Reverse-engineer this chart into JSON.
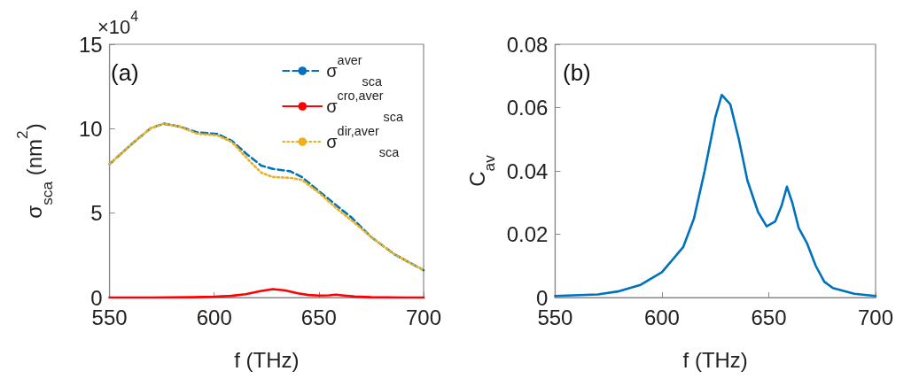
{
  "chart_data": [
    {
      "type": "line",
      "title": "(a)",
      "xlabel": "f (THz)",
      "ylabel": "σ$_{sca}$ (nm$^{2}$)",
      "annotations": [
        "×10$^{4}$"
      ],
      "xlim": [
        550,
        700
      ],
      "xticks": [
        550,
        600,
        650,
        700
      ],
      "ylim": [
        0,
        15
      ],
      "yticks": [
        0,
        5,
        10,
        15
      ],
      "grid": false,
      "legend": "top right",
      "marker": "none",
      "series": [
        {
          "name": "σ$^{aver}$$_{sca}$",
          "color": "#0072bd",
          "line_style": "dashed",
          "x": [
            550,
            561.4,
            569.7,
            575.9,
            583.6,
            591.9,
            601.6,
            608.5,
            615.5,
            622.4,
            628,
            636.3,
            641.8,
            650.1,
            658.5,
            665.4,
            675.1,
            686.2,
            700
          ],
          "values": [
            7.9,
            9.18,
            10.03,
            10.3,
            10.12,
            9.78,
            9.69,
            9.27,
            8.5,
            7.82,
            7.62,
            7.48,
            7.14,
            6.29,
            5.44,
            4.76,
            3.57,
            2.55,
            1.62
          ]
        },
        {
          "name": "σ$^{cro,aver}$$_{sca}$",
          "color": "#ff0000",
          "line_style": "solid",
          "x": [
            550,
            570,
            590,
            600,
            608,
            615,
            622,
            628,
            634,
            640,
            645,
            650,
            655,
            658,
            662,
            667,
            675,
            690,
            700
          ],
          "values": [
            0,
            0,
            0.02,
            0.05,
            0.1,
            0.2,
            0.38,
            0.5,
            0.42,
            0.25,
            0.15,
            0.12,
            0.13,
            0.17,
            0.12,
            0.06,
            0.02,
            0,
            0
          ]
        },
        {
          "name": "σ$^{dir,aver}$$_{sca}$",
          "color": "#edb120",
          "line_style": "dotted",
          "x": [
            550,
            561.4,
            569.7,
            575.9,
            583.6,
            591.9,
            601.6,
            608.5,
            616.9,
            622.4,
            628,
            636.3,
            641.8,
            650.1,
            658.5,
            665.4,
            675.1,
            686.2,
            700
          ],
          "values": [
            7.9,
            9.18,
            10.03,
            10.3,
            10.12,
            9.7,
            9.6,
            9.2,
            8.08,
            7.4,
            7.14,
            7.09,
            6.97,
            6.2,
            5.27,
            4.59,
            3.57,
            2.55,
            1.62
          ]
        }
      ]
    },
    {
      "type": "line",
      "title": "(b)",
      "xlabel": "f (THz)",
      "ylabel": "C$_{av}$",
      "xlim": [
        550,
        700
      ],
      "xticks": [
        550,
        600,
        650,
        700
      ],
      "ylim": [
        0,
        0.08
      ],
      "yticks": [
        0,
        0.02,
        0.04,
        0.06,
        0.08
      ],
      "grid": false,
      "legend": false,
      "marker": "none",
      "series": [
        {
          "color": "#0072bd",
          "line_style": "solid",
          "x": [
            550,
            570,
            580,
            590,
            600,
            610,
            615,
            620,
            625,
            628,
            632,
            636,
            640,
            645,
            649,
            653,
            656,
            658.5,
            661,
            664,
            668,
            672,
            676,
            680,
            690,
            700
          ],
          "values": [
            0.0005,
            0.001,
            0.002,
            0.004,
            0.008,
            0.016,
            0.025,
            0.04,
            0.057,
            0.064,
            0.061,
            0.05,
            0.037,
            0.027,
            0.0225,
            0.024,
            0.029,
            0.035,
            0.03,
            0.022,
            0.017,
            0.01,
            0.005,
            0.003,
            0.0012,
            0.0005
          ]
        }
      ]
    }
  ]
}
